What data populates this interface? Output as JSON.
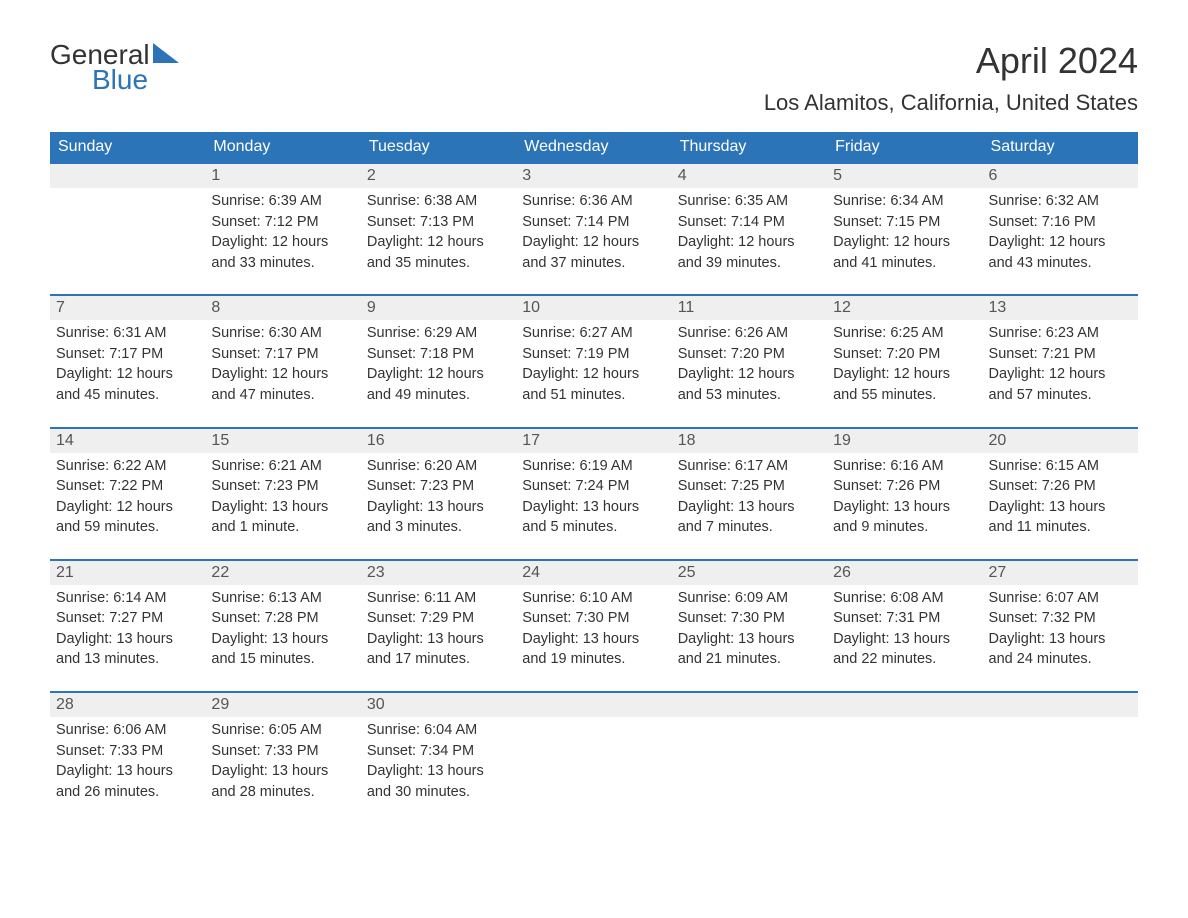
{
  "logo": {
    "general": "General",
    "blue": "Blue"
  },
  "title": "April 2024",
  "location": "Los Alamitos, California, United States",
  "weekdays": [
    "Sunday",
    "Monday",
    "Tuesday",
    "Wednesday",
    "Thursday",
    "Friday",
    "Saturday"
  ],
  "colors": {
    "header_bg": "#2c74b8",
    "header_text": "#ffffff",
    "daynum_bg": "#efefef",
    "text": "#333333",
    "row_divider": "#2c74b8"
  },
  "weeks": [
    [
      {
        "day": "",
        "sunrise": "",
        "sunset": "",
        "daylight1": "",
        "daylight2": ""
      },
      {
        "day": "1",
        "sunrise": "Sunrise: 6:39 AM",
        "sunset": "Sunset: 7:12 PM",
        "daylight1": "Daylight: 12 hours",
        "daylight2": "and 33 minutes."
      },
      {
        "day": "2",
        "sunrise": "Sunrise: 6:38 AM",
        "sunset": "Sunset: 7:13 PM",
        "daylight1": "Daylight: 12 hours",
        "daylight2": "and 35 minutes."
      },
      {
        "day": "3",
        "sunrise": "Sunrise: 6:36 AM",
        "sunset": "Sunset: 7:14 PM",
        "daylight1": "Daylight: 12 hours",
        "daylight2": "and 37 minutes."
      },
      {
        "day": "4",
        "sunrise": "Sunrise: 6:35 AM",
        "sunset": "Sunset: 7:14 PM",
        "daylight1": "Daylight: 12 hours",
        "daylight2": "and 39 minutes."
      },
      {
        "day": "5",
        "sunrise": "Sunrise: 6:34 AM",
        "sunset": "Sunset: 7:15 PM",
        "daylight1": "Daylight: 12 hours",
        "daylight2": "and 41 minutes."
      },
      {
        "day": "6",
        "sunrise": "Sunrise: 6:32 AM",
        "sunset": "Sunset: 7:16 PM",
        "daylight1": "Daylight: 12 hours",
        "daylight2": "and 43 minutes."
      }
    ],
    [
      {
        "day": "7",
        "sunrise": "Sunrise: 6:31 AM",
        "sunset": "Sunset: 7:17 PM",
        "daylight1": "Daylight: 12 hours",
        "daylight2": "and 45 minutes."
      },
      {
        "day": "8",
        "sunrise": "Sunrise: 6:30 AM",
        "sunset": "Sunset: 7:17 PM",
        "daylight1": "Daylight: 12 hours",
        "daylight2": "and 47 minutes."
      },
      {
        "day": "9",
        "sunrise": "Sunrise: 6:29 AM",
        "sunset": "Sunset: 7:18 PM",
        "daylight1": "Daylight: 12 hours",
        "daylight2": "and 49 minutes."
      },
      {
        "day": "10",
        "sunrise": "Sunrise: 6:27 AM",
        "sunset": "Sunset: 7:19 PM",
        "daylight1": "Daylight: 12 hours",
        "daylight2": "and 51 minutes."
      },
      {
        "day": "11",
        "sunrise": "Sunrise: 6:26 AM",
        "sunset": "Sunset: 7:20 PM",
        "daylight1": "Daylight: 12 hours",
        "daylight2": "and 53 minutes."
      },
      {
        "day": "12",
        "sunrise": "Sunrise: 6:25 AM",
        "sunset": "Sunset: 7:20 PM",
        "daylight1": "Daylight: 12 hours",
        "daylight2": "and 55 minutes."
      },
      {
        "day": "13",
        "sunrise": "Sunrise: 6:23 AM",
        "sunset": "Sunset: 7:21 PM",
        "daylight1": "Daylight: 12 hours",
        "daylight2": "and 57 minutes."
      }
    ],
    [
      {
        "day": "14",
        "sunrise": "Sunrise: 6:22 AM",
        "sunset": "Sunset: 7:22 PM",
        "daylight1": "Daylight: 12 hours",
        "daylight2": "and 59 minutes."
      },
      {
        "day": "15",
        "sunrise": "Sunrise: 6:21 AM",
        "sunset": "Sunset: 7:23 PM",
        "daylight1": "Daylight: 13 hours",
        "daylight2": "and 1 minute."
      },
      {
        "day": "16",
        "sunrise": "Sunrise: 6:20 AM",
        "sunset": "Sunset: 7:23 PM",
        "daylight1": "Daylight: 13 hours",
        "daylight2": "and 3 minutes."
      },
      {
        "day": "17",
        "sunrise": "Sunrise: 6:19 AM",
        "sunset": "Sunset: 7:24 PM",
        "daylight1": "Daylight: 13 hours",
        "daylight2": "and 5 minutes."
      },
      {
        "day": "18",
        "sunrise": "Sunrise: 6:17 AM",
        "sunset": "Sunset: 7:25 PM",
        "daylight1": "Daylight: 13 hours",
        "daylight2": "and 7 minutes."
      },
      {
        "day": "19",
        "sunrise": "Sunrise: 6:16 AM",
        "sunset": "Sunset: 7:26 PM",
        "daylight1": "Daylight: 13 hours",
        "daylight2": "and 9 minutes."
      },
      {
        "day": "20",
        "sunrise": "Sunrise: 6:15 AM",
        "sunset": "Sunset: 7:26 PM",
        "daylight1": "Daylight: 13 hours",
        "daylight2": "and 11 minutes."
      }
    ],
    [
      {
        "day": "21",
        "sunrise": "Sunrise: 6:14 AM",
        "sunset": "Sunset: 7:27 PM",
        "daylight1": "Daylight: 13 hours",
        "daylight2": "and 13 minutes."
      },
      {
        "day": "22",
        "sunrise": "Sunrise: 6:13 AM",
        "sunset": "Sunset: 7:28 PM",
        "daylight1": "Daylight: 13 hours",
        "daylight2": "and 15 minutes."
      },
      {
        "day": "23",
        "sunrise": "Sunrise: 6:11 AM",
        "sunset": "Sunset: 7:29 PM",
        "daylight1": "Daylight: 13 hours",
        "daylight2": "and 17 minutes."
      },
      {
        "day": "24",
        "sunrise": "Sunrise: 6:10 AM",
        "sunset": "Sunset: 7:30 PM",
        "daylight1": "Daylight: 13 hours",
        "daylight2": "and 19 minutes."
      },
      {
        "day": "25",
        "sunrise": "Sunrise: 6:09 AM",
        "sunset": "Sunset: 7:30 PM",
        "daylight1": "Daylight: 13 hours",
        "daylight2": "and 21 minutes."
      },
      {
        "day": "26",
        "sunrise": "Sunrise: 6:08 AM",
        "sunset": "Sunset: 7:31 PM",
        "daylight1": "Daylight: 13 hours",
        "daylight2": "and 22 minutes."
      },
      {
        "day": "27",
        "sunrise": "Sunrise: 6:07 AM",
        "sunset": "Sunset: 7:32 PM",
        "daylight1": "Daylight: 13 hours",
        "daylight2": "and 24 minutes."
      }
    ],
    [
      {
        "day": "28",
        "sunrise": "Sunrise: 6:06 AM",
        "sunset": "Sunset: 7:33 PM",
        "daylight1": "Daylight: 13 hours",
        "daylight2": "and 26 minutes."
      },
      {
        "day": "29",
        "sunrise": "Sunrise: 6:05 AM",
        "sunset": "Sunset: 7:33 PM",
        "daylight1": "Daylight: 13 hours",
        "daylight2": "and 28 minutes."
      },
      {
        "day": "30",
        "sunrise": "Sunrise: 6:04 AM",
        "sunset": "Sunset: 7:34 PM",
        "daylight1": "Daylight: 13 hours",
        "daylight2": "and 30 minutes."
      },
      {
        "day": "",
        "sunrise": "",
        "sunset": "",
        "daylight1": "",
        "daylight2": ""
      },
      {
        "day": "",
        "sunrise": "",
        "sunset": "",
        "daylight1": "",
        "daylight2": ""
      },
      {
        "day": "",
        "sunrise": "",
        "sunset": "",
        "daylight1": "",
        "daylight2": ""
      },
      {
        "day": "",
        "sunrise": "",
        "sunset": "",
        "daylight1": "",
        "daylight2": ""
      }
    ]
  ]
}
